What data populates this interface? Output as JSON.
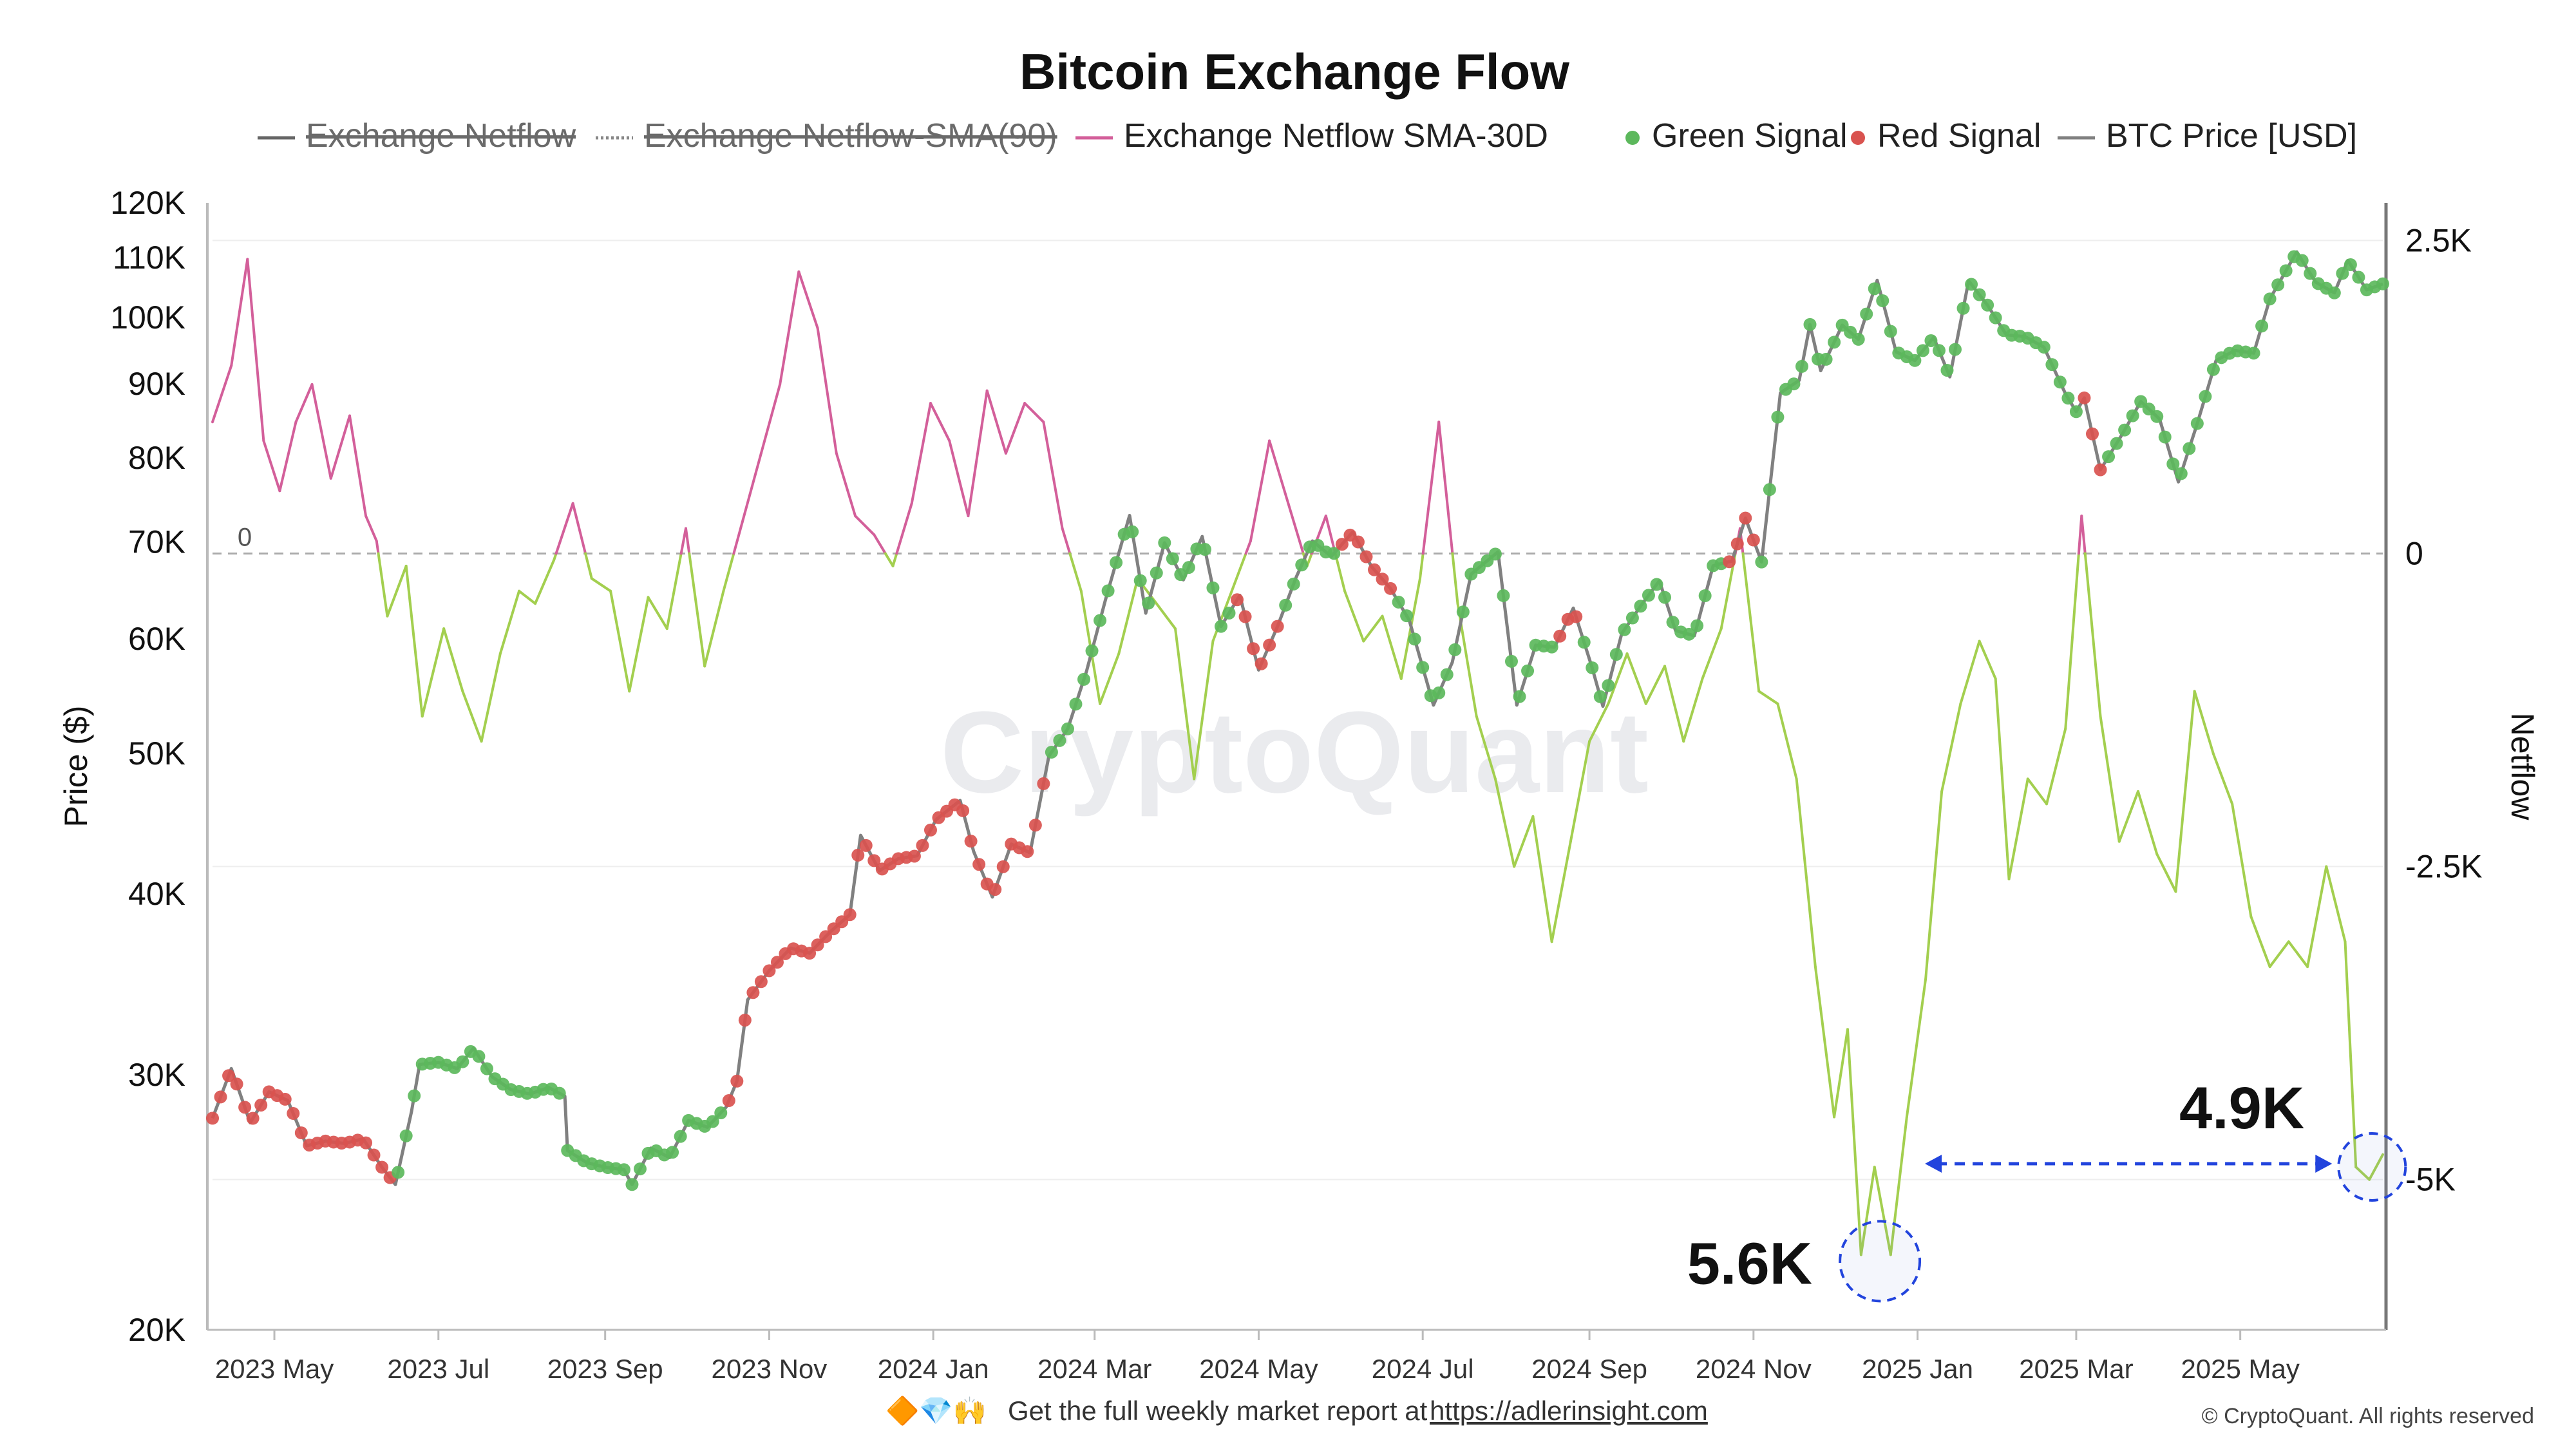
{
  "chart_data": {
    "type": "line",
    "title": "Bitcoin Exchange Flow",
    "watermark": "CryptoQuant",
    "legend": [
      {
        "name": "Exchange Netflow",
        "color": "#666666",
        "style": "solid",
        "hidden": true
      },
      {
        "name": "Exchange Netflow-SMA(90)",
        "color": "#888888",
        "style": "dotted",
        "hidden": true
      },
      {
        "name": "Exchange Netflow SMA-30D",
        "color": "#d35f9a",
        "style": "solid",
        "hidden": false
      },
      {
        "name": "Green Signal",
        "color": "#5cb85c",
        "style": "dot",
        "hidden": false
      },
      {
        "name": "Red Signal",
        "color": "#d9534f",
        "style": "dot",
        "hidden": false
      },
      {
        "name": "BTC Price [USD]",
        "color": "#808080",
        "style": "solid",
        "hidden": false
      }
    ],
    "y_left": {
      "label": "Price ($)",
      "scale": "log",
      "range": [
        20000,
        120000
      ],
      "ticks": [
        20000,
        30000,
        40000,
        50000,
        60000,
        70000,
        80000,
        90000,
        100000,
        110000,
        120000
      ],
      "tick_labels": [
        "20K",
        "30K",
        "40K",
        "50K",
        "60K",
        "70K",
        "80K",
        "90K",
        "100K",
        "110K",
        "120K"
      ]
    },
    "y_right": {
      "label": "Netflow",
      "scale": "linear",
      "range": [
        -6200,
        2800
      ],
      "ticks": [
        2500,
        0,
        -2500,
        -5000
      ],
      "tick_labels": [
        "2.5K",
        "0",
        "-2.5K",
        "-5K"
      ],
      "zero_line_label": "0"
    },
    "x_axis": {
      "start": "2023-04-08",
      "end": "2025-06-23",
      "ticks": [
        "2023-05-01",
        "2023-07-01",
        "2023-09-01",
        "2023-11-01",
        "2024-01-01",
        "2024-03-01",
        "2024-05-01",
        "2024-07-01",
        "2024-09-01",
        "2024-11-01",
        "2025-01-01",
        "2025-03-01",
        "2025-05-01"
      ],
      "tick_labels": [
        "2023 May",
        "2023 Jul",
        "2023 Sep",
        "2023 Nov",
        "2024 Jan",
        "2024 Mar",
        "2024 May",
        "2024 Jul",
        "2024 Sep",
        "2024 Nov",
        "2025 Jan",
        "2025 Mar",
        "2025 May"
      ]
    },
    "price_series": {
      "name": "BTC Price [USD]",
      "points": [
        [
          "2023-04-08",
          28000
        ],
        [
          "2023-04-15",
          30300
        ],
        [
          "2023-04-22",
          27800
        ],
        [
          "2023-04-29",
          29200
        ],
        [
          "2023-05-06",
          28800
        ],
        [
          "2023-05-13",
          26800
        ],
        [
          "2023-05-20",
          27000
        ],
        [
          "2023-05-27",
          26900
        ],
        [
          "2023-06-03",
          27100
        ],
        [
          "2023-06-10",
          25900
        ],
        [
          "2023-06-15",
          25200
        ],
        [
          "2023-06-21",
          28300
        ],
        [
          "2023-06-24",
          30500
        ],
        [
          "2023-07-01",
          30600
        ],
        [
          "2023-07-08",
          30300
        ],
        [
          "2023-07-14",
          31300
        ],
        [
          "2023-07-21",
          29900
        ],
        [
          "2023-07-28",
          29300
        ],
        [
          "2023-08-04",
          29100
        ],
        [
          "2023-08-11",
          29400
        ],
        [
          "2023-08-17",
          29000
        ],
        [
          "2023-08-18",
          26600
        ],
        [
          "2023-08-25",
          26100
        ],
        [
          "2023-09-01",
          25900
        ],
        [
          "2023-09-08",
          25800
        ],
        [
          "2023-09-11",
          25200
        ],
        [
          "2023-09-18",
          26700
        ],
        [
          "2023-09-25",
          26300
        ],
        [
          "2023-10-02",
          27900
        ],
        [
          "2023-10-09",
          27600
        ],
        [
          "2023-10-16",
          28500
        ],
        [
          "2023-10-20",
          29700
        ],
        [
          "2023-10-24",
          33800
        ],
        [
          "2023-11-01",
          35400
        ],
        [
          "2023-11-09",
          36700
        ],
        [
          "2023-11-16",
          36400
        ],
        [
          "2023-11-24",
          37700
        ],
        [
          "2023-12-01",
          38700
        ],
        [
          "2023-12-05",
          43900
        ],
        [
          "2023-12-12",
          41500
        ],
        [
          "2023-12-19",
          42300
        ],
        [
          "2023-12-26",
          42500
        ],
        [
          "2024-01-02",
          45000
        ],
        [
          "2024-01-11",
          46400
        ],
        [
          "2024-01-16",
          42800
        ],
        [
          "2024-01-23",
          39800
        ],
        [
          "2024-01-30",
          43300
        ],
        [
          "2024-02-06",
          42700
        ],
        [
          "2024-02-13",
          49800
        ],
        [
          "2024-02-20",
          52000
        ],
        [
          "2024-02-27",
          57000
        ],
        [
          "2024-03-05",
          63800
        ],
        [
          "2024-03-14",
          73000
        ],
        [
          "2024-03-20",
          62500
        ],
        [
          "2024-03-27",
          69900
        ],
        [
          "2024-04-03",
          65900
        ],
        [
          "2024-04-10",
          70600
        ],
        [
          "2024-04-17",
          61200
        ],
        [
          "2024-04-24",
          64300
        ],
        [
          "2024-05-01",
          57100
        ],
        [
          "2024-05-08",
          61200
        ],
        [
          "2024-05-15",
          66200
        ],
        [
          "2024-05-21",
          70100
        ],
        [
          "2024-05-28",
          68400
        ],
        [
          "2024-06-05",
          71100
        ],
        [
          "2024-06-12",
          67300
        ],
        [
          "2024-06-19",
          65000
        ],
        [
          "2024-06-26",
          61800
        ],
        [
          "2024-07-05",
          54000
        ],
        [
          "2024-07-12",
          57800
        ],
        [
          "2024-07-19",
          66500
        ],
        [
          "2024-07-29",
          68900
        ],
        [
          "2024-08-05",
          54000
        ],
        [
          "2024-08-12",
          59400
        ],
        [
          "2024-08-19",
          59200
        ],
        [
          "2024-08-26",
          63000
        ],
        [
          "2024-09-02",
          57300
        ],
        [
          "2024-09-06",
          53900
        ],
        [
          "2024-09-13",
          60500
        ],
        [
          "2024-09-20",
          63200
        ],
        [
          "2024-09-27",
          65800
        ],
        [
          "2024-10-03",
          60800
        ],
        [
          "2024-10-10",
          60300
        ],
        [
          "2024-10-17",
          67400
        ],
        [
          "2024-10-24",
          67900
        ],
        [
          "2024-10-29",
          72700
        ],
        [
          "2024-11-04",
          67800
        ],
        [
          "2024-11-11",
          88700
        ],
        [
          "2024-11-18",
          90500
        ],
        [
          "2024-11-22",
          98900
        ],
        [
          "2024-11-26",
          91900
        ],
        [
          "2024-12-04",
          98800
        ],
        [
          "2024-12-10",
          96600
        ],
        [
          "2024-12-17",
          106100
        ],
        [
          "2024-12-24",
          94700
        ],
        [
          "2024-12-31",
          93400
        ],
        [
          "2025-01-07",
          96900
        ],
        [
          "2025-01-13",
          91000
        ],
        [
          "2025-01-20",
          106000
        ],
        [
          "2025-01-27",
          102000
        ],
        [
          "2025-02-03",
          97300
        ],
        [
          "2025-02-10",
          97000
        ],
        [
          "2025-02-17",
          95400
        ],
        [
          "2025-02-25",
          88600
        ],
        [
          "2025-03-01",
          86100
        ],
        [
          "2025-03-04",
          88000
        ],
        [
          "2025-03-10",
          78500
        ],
        [
          "2025-03-18",
          83000
        ],
        [
          "2025-03-25",
          87500
        ],
        [
          "2025-04-01",
          85100
        ],
        [
          "2025-04-08",
          77000
        ],
        [
          "2025-04-15",
          84500
        ],
        [
          "2025-04-22",
          93400
        ],
        [
          "2025-04-29",
          94900
        ],
        [
          "2025-05-06",
          94500
        ],
        [
          "2025-05-12",
          103000
        ],
        [
          "2025-05-22",
          111000
        ],
        [
          "2025-05-29",
          105800
        ],
        [
          "2025-06-05",
          104000
        ],
        [
          "2025-06-10",
          109500
        ],
        [
          "2025-06-17",
          104500
        ],
        [
          "2025-06-23",
          105500
        ]
      ]
    },
    "signals": {
      "red": [
        [
          "2023-04-08",
          "2023-06-15"
        ],
        [
          "2023-10-16",
          "2024-02-13"
        ],
        [
          "2024-04-22",
          "2024-05-08"
        ],
        [
          "2024-06-01",
          "2024-06-20"
        ],
        [
          "2024-08-20",
          "2024-08-28"
        ],
        [
          "2024-10-22",
          "2024-11-01"
        ],
        [
          "2025-03-03",
          "2025-03-12"
        ]
      ],
      "green": [
        [
          "2023-06-16",
          "2023-10-15"
        ],
        [
          "2024-02-14",
          "2024-04-21"
        ],
        [
          "2024-05-09",
          "2024-05-31"
        ],
        [
          "2024-06-21",
          "2024-08-19"
        ],
        [
          "2024-08-29",
          "2024-10-21"
        ],
        [
          "2024-11-02",
          "2025-03-02"
        ],
        [
          "2025-03-13",
          "2025-06-23"
        ]
      ]
    },
    "netflow_series": {
      "name": "Exchange Netflow SMA-30D",
      "points": [
        [
          "2023-04-08",
          1050
        ],
        [
          "2023-04-15",
          1500
        ],
        [
          "2023-04-21",
          2350
        ],
        [
          "2023-04-27",
          900
        ],
        [
          "2023-05-03",
          500
        ],
        [
          "2023-05-09",
          1050
        ],
        [
          "2023-05-15",
          1350
        ],
        [
          "2023-05-22",
          600
        ],
        [
          "2023-05-29",
          1100
        ],
        [
          "2023-06-04",
          300
        ],
        [
          "2023-06-08",
          100
        ],
        [
          "2023-06-12",
          -500
        ],
        [
          "2023-06-19",
          -100
        ],
        [
          "2023-06-25",
          -1300
        ],
        [
          "2023-07-03",
          -600
        ],
        [
          "2023-07-10",
          -1100
        ],
        [
          "2023-07-17",
          -1500
        ],
        [
          "2023-07-24",
          -800
        ],
        [
          "2023-07-31",
          -300
        ],
        [
          "2023-08-06",
          -400
        ],
        [
          "2023-08-13",
          -50
        ],
        [
          "2023-08-20",
          400
        ],
        [
          "2023-08-27",
          -200
        ],
        [
          "2023-09-03",
          -300
        ],
        [
          "2023-09-10",
          -1100
        ],
        [
          "2023-09-17",
          -350
        ],
        [
          "2023-09-24",
          -600
        ],
        [
          "2023-10-01",
          200
        ],
        [
          "2023-10-08",
          -900
        ],
        [
          "2023-10-15",
          -300
        ],
        [
          "2023-10-22",
          250
        ],
        [
          "2023-10-29",
          800
        ],
        [
          "2023-11-05",
          1350
        ],
        [
          "2023-11-12",
          2250
        ],
        [
          "2023-11-19",
          1800
        ],
        [
          "2023-11-26",
          800
        ],
        [
          "2023-12-03",
          300
        ],
        [
          "2023-12-10",
          150
        ],
        [
          "2023-12-17",
          -100
        ],
        [
          "2023-12-24",
          400
        ],
        [
          "2023-12-31",
          1200
        ],
        [
          "2024-01-07",
          900
        ],
        [
          "2024-01-14",
          300
        ],
        [
          "2024-01-21",
          1300
        ],
        [
          "2024-01-28",
          800
        ],
        [
          "2024-02-04",
          1200
        ],
        [
          "2024-02-11",
          1050
        ],
        [
          "2024-02-18",
          200
        ],
        [
          "2024-02-25",
          -300
        ],
        [
          "2024-03-03",
          -1200
        ],
        [
          "2024-03-10",
          -800
        ],
        [
          "2024-03-17",
          -200
        ],
        [
          "2024-03-24",
          -400
        ],
        [
          "2024-03-31",
          -600
        ],
        [
          "2024-04-07",
          -1800
        ],
        [
          "2024-04-14",
          -700
        ],
        [
          "2024-04-21",
          -300
        ],
        [
          "2024-04-28",
          100
        ],
        [
          "2024-05-05",
          900
        ],
        [
          "2024-05-12",
          400
        ],
        [
          "2024-05-19",
          -100
        ],
        [
          "2024-05-26",
          300
        ],
        [
          "2024-06-02",
          -300
        ],
        [
          "2024-06-09",
          -700
        ],
        [
          "2024-06-16",
          -500
        ],
        [
          "2024-06-23",
          -1000
        ],
        [
          "2024-06-30",
          -200
        ],
        [
          "2024-07-07",
          1050
        ],
        [
          "2024-07-14",
          -400
        ],
        [
          "2024-07-21",
          -1300
        ],
        [
          "2024-07-28",
          -1800
        ],
        [
          "2024-08-04",
          -2500
        ],
        [
          "2024-08-11",
          -2100
        ],
        [
          "2024-08-18",
          -3100
        ],
        [
          "2024-08-25",
          -2300
        ],
        [
          "2024-09-01",
          -1500
        ],
        [
          "2024-09-08",
          -1200
        ],
        [
          "2024-09-15",
          -800
        ],
        [
          "2024-09-22",
          -1200
        ],
        [
          "2024-09-29",
          -900
        ],
        [
          "2024-10-06",
          -1500
        ],
        [
          "2024-10-13",
          -1000
        ],
        [
          "2024-10-20",
          -600
        ],
        [
          "2024-10-27",
          200
        ],
        [
          "2024-11-03",
          -1100
        ],
        [
          "2024-11-10",
          -1200
        ],
        [
          "2024-11-17",
          -1800
        ],
        [
          "2024-11-24",
          -3300
        ],
        [
          "2024-12-01",
          -4500
        ],
        [
          "2024-12-06",
          -3800
        ],
        [
          "2024-12-11",
          -5600
        ],
        [
          "2024-12-16",
          -4900
        ],
        [
          "2024-12-22",
          -5600
        ],
        [
          "2024-12-28",
          -4500
        ],
        [
          "2025-01-04",
          -3400
        ],
        [
          "2025-01-10",
          -1900
        ],
        [
          "2025-01-17",
          -1200
        ],
        [
          "2025-01-24",
          -700
        ],
        [
          "2025-01-30",
          -1000
        ],
        [
          "2025-02-04",
          -2600
        ],
        [
          "2025-02-11",
          -1800
        ],
        [
          "2025-02-18",
          -2000
        ],
        [
          "2025-02-25",
          -1400
        ],
        [
          "2025-03-03",
          300
        ],
        [
          "2025-03-10",
          -1300
        ],
        [
          "2025-03-17",
          -2300
        ],
        [
          "2025-03-24",
          -1900
        ],
        [
          "2025-03-31",
          -2400
        ],
        [
          "2025-04-07",
          -2700
        ],
        [
          "2025-04-14",
          -1100
        ],
        [
          "2025-04-21",
          -1600
        ],
        [
          "2025-04-28",
          -2000
        ],
        [
          "2025-05-05",
          -2900
        ],
        [
          "2025-05-12",
          -3300
        ],
        [
          "2025-05-19",
          -3100
        ],
        [
          "2025-05-26",
          -3300
        ],
        [
          "2025-06-02",
          -2500
        ],
        [
          "2025-06-09",
          -3100
        ],
        [
          "2025-06-13",
          -4900
        ],
        [
          "2025-06-18",
          -5000
        ],
        [
          "2025-06-23",
          -4800
        ]
      ]
    },
    "annotations": [
      {
        "label": "5.6K",
        "date": "2024-12-18",
        "netflow": -5600
      },
      {
        "label": "4.9K",
        "date": "2025-06-19",
        "netflow": -4950
      }
    ]
  },
  "footer": {
    "emojis": "🔶💎🙌",
    "text": "Get the full weekly market report at",
    "link": "https://adlerinsight.com",
    "copyright": "© CryptoQuant. All rights reserved"
  }
}
